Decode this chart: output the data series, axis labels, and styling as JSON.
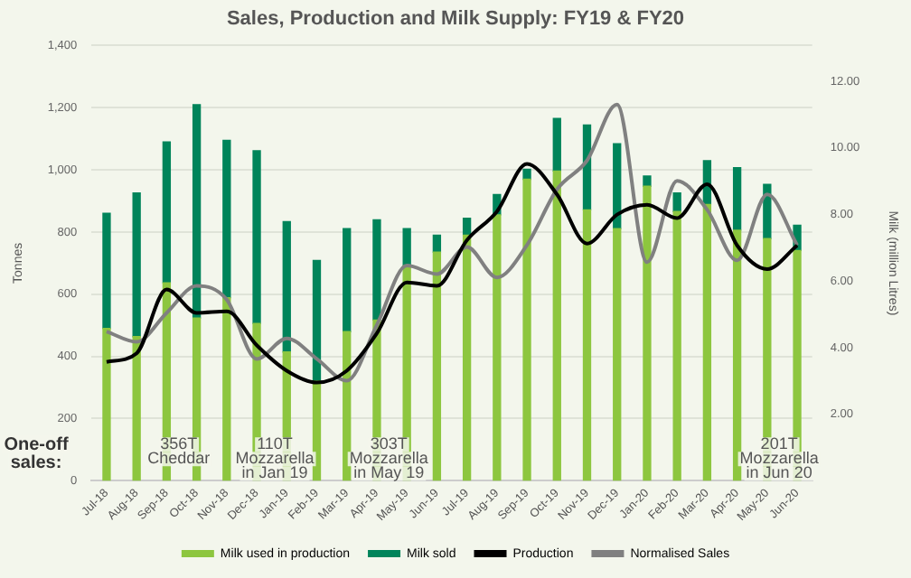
{
  "chart_data": {
    "type": "bar",
    "title": "Sales, Production and Milk Supply: FY19 & FY20",
    "ylabel": "Tonnes",
    "y2label": "Milk (million Litres)",
    "categories": [
      "Jul-18",
      "Aug-18",
      "Sep-18",
      "Oct-18",
      "Nov-18",
      "Dec-18",
      "Jan-19",
      "Feb-19",
      "Mar-19",
      "Apr-19",
      "May-19",
      "Jun-19",
      "Jul-19",
      "Aug-19",
      "Sep-19",
      "Oct-19",
      "Nov-19",
      "Dec-19",
      "Jan-20",
      "Feb-20",
      "Mar-20",
      "Apr-20",
      "May-20",
      "Jun-20"
    ],
    "series": [
      {
        "name": "Milk used in production",
        "axis": "y2",
        "color": "#8dc63f",
        "values": [
          4.58,
          4.33,
          5.95,
          4.89,
          5.5,
          4.73,
          3.87,
          3.0,
          4.48,
          4.83,
          6.46,
          6.87,
          7.38,
          7.99,
          9.06,
          9.31,
          8.14,
          7.58,
          8.85,
          8.09,
          8.3,
          7.53,
          7.28,
          6.92
        ]
      },
      {
        "name": "Milk sold",
        "axis": "y2",
        "color": "#00845a",
        "values": [
          3.46,
          4.32,
          4.23,
          6.41,
          4.73,
          5.19,
          3.92,
          3.62,
          3.1,
          3.01,
          1.12,
          0.51,
          0.51,
          0.61,
          0.3,
          1.58,
          2.55,
          2.55,
          0.31,
          0.56,
          1.32,
          1.88,
          1.63,
          0.76
        ]
      },
      {
        "name": "Production",
        "type": "line",
        "axis": "y",
        "color": "#000000",
        "values": [
          382,
          410,
          615,
          540,
          545,
          436,
          354,
          316,
          354,
          474,
          638,
          627,
          774,
          866,
          1019,
          921,
          763,
          856,
          888,
          845,
          954,
          757,
          681,
          757
        ]
      },
      {
        "name": "Normalised Sales",
        "type": "line",
        "axis": "y",
        "color": "#808080",
        "values": [
          480,
          447,
          540,
          627,
          583,
          392,
          458,
          392,
          322,
          501,
          692,
          665,
          752,
          654,
          758,
          937,
          1030,
          1210,
          703,
          965,
          872,
          709,
          921,
          758
        ]
      }
    ],
    "stacked": true,
    "marker": "none",
    "grid": "y",
    "legend": "bottom",
    "ylim": [
      0,
      1400
    ],
    "yticks": [
      0,
      200,
      400,
      600,
      800,
      {
        "value": 1000,
        "label": "1,000"
      },
      {
        "value": 1200,
        "label": "1,200"
      },
      {
        "value": 1400,
        "label": "1,400"
      }
    ],
    "y2lim": [
      0,
      13.08
    ],
    "y2ticks": [
      {
        "value": 0,
        "label": null
      },
      {
        "value": 2,
        "label": "2.00"
      },
      {
        "value": 4,
        "label": "4.00"
      },
      {
        "value": 6,
        "label": "6.00"
      },
      {
        "value": 8,
        "label": "8.00"
      },
      {
        "value": 10,
        "label": "10.00"
      },
      {
        "value": 12,
        "label": "12.00"
      }
    ],
    "annotations": [
      "One-off sales:",
      "356T Cheddar",
      "110T Mozzarella in Jan 19",
      "303T Mozzarella in May 19",
      "201T Mozzarella in Jun 20"
    ]
  }
}
